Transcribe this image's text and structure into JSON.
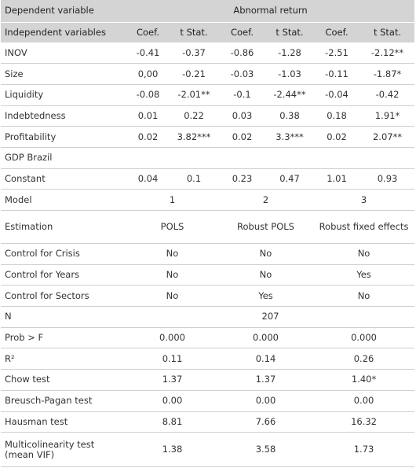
{
  "header": {
    "dependent_label": "Dependent variable",
    "dependent_value": "Abnormal return",
    "columns": [
      "Independent variables",
      "Coef.",
      "t Stat.",
      "Coef.",
      "t Stat.",
      "Coef.",
      "t Stat."
    ]
  },
  "rows": [
    {
      "label": "INOV",
      "cells": [
        "-0.41",
        "-0.37",
        "-0.86",
        "-1.28",
        "-2.51",
        "-2.12**"
      ]
    },
    {
      "label": "Size",
      "cells": [
        "0,00",
        "-0.21",
        "-0.03",
        "-1.03",
        "-0.11",
        "-1.87*"
      ]
    },
    {
      "label": "Liquidity",
      "cells": [
        "-0.08",
        "-2.01**",
        "-0.1",
        "-2.44**",
        "-0.04",
        "-0.42"
      ]
    },
    {
      "label": "Indebtedness",
      "cells": [
        "0.01",
        "0.22",
        "0.03",
        "0.38",
        "0.18",
        "1.91*"
      ]
    },
    {
      "label": "Profitability",
      "cells": [
        "0.02",
        "3.82***",
        "0.02",
        "3.3***",
        "0.02",
        "2.07**"
      ]
    },
    {
      "label": "GDP Brazil",
      "cells": []
    },
    {
      "label": "Constant",
      "cells": [
        "0.04",
        "0.1",
        "0.23",
        "0.47",
        "1.01",
        "0.93"
      ]
    },
    {
      "label": "Model",
      "cells": [
        "1",
        "2",
        "3"
      ]
    },
    {
      "label": "Estimation",
      "cells": [
        "POLS",
        "Robust POLS",
        "Robust fixed effects"
      ]
    },
    {
      "label": "Control for Crisis",
      "cells": [
        "No",
        "No",
        "No"
      ]
    },
    {
      "label": "Control for Years",
      "cells": [
        "No",
        "No",
        "Yes"
      ]
    },
    {
      "label": "Control for Sectors",
      "cells": [
        "No",
        "Yes",
        "No"
      ]
    },
    {
      "label": "N",
      "cells": [
        "207"
      ]
    },
    {
      "label": "Prob > F",
      "cells": [
        "0.000",
        "0.000",
        "0.000"
      ]
    },
    {
      "label": "R²",
      "cells": [
        "0.11",
        "0.14",
        "0.26"
      ]
    },
    {
      "label": "Chow test",
      "cells": [
        "1.37",
        "1.37",
        "1.40*"
      ]
    },
    {
      "label": "Breusch-Pagan test",
      "cells": [
        "0.00",
        "0.00",
        "0.00"
      ]
    },
    {
      "label": "Hausman test",
      "cells": [
        "8.81",
        "7.66",
        "16.32"
      ]
    },
    {
      "label": "Multicolinearity test (mean VIF)",
      "cells": [
        "1.38",
        "3.58",
        "1.73"
      ]
    }
  ]
}
